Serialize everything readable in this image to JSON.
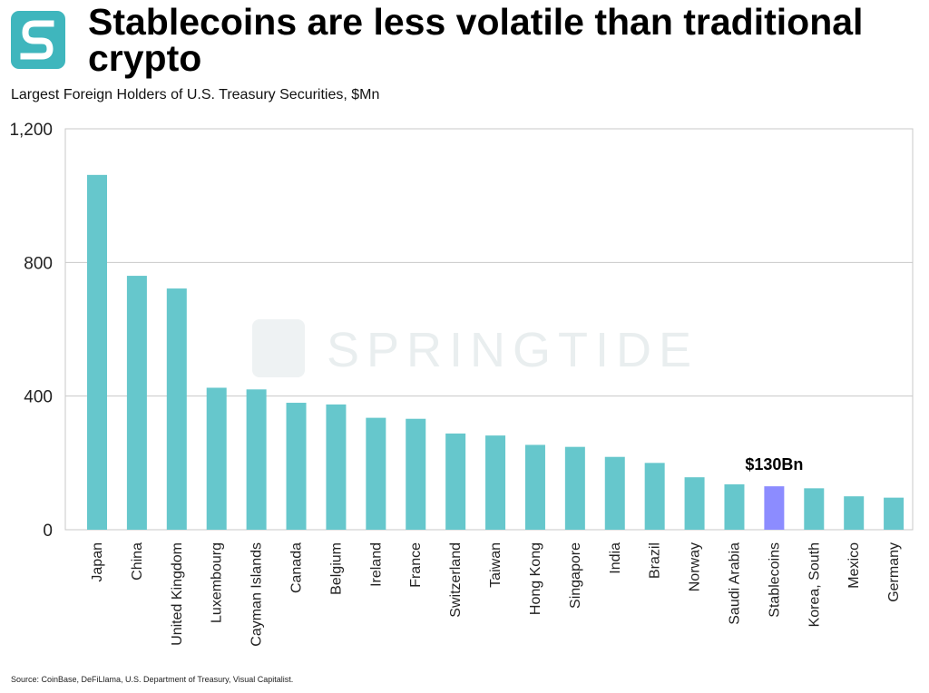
{
  "header": {
    "title": "Stablecoins are less volatile than traditional crypto",
    "subtitle": "Largest Foreign Holders of U.S. Treasury Securities, $Mn"
  },
  "watermark": {
    "text": "SPRINGTIDE"
  },
  "colors": {
    "bar": "#66c7cc",
    "highlight_bar": "#8c8cff",
    "logo": "#3fb6bd",
    "grid": "#c8c8c8",
    "watermark": "#e9eeef"
  },
  "footer": {
    "source": "Source: CoinBase, DeFiLlama, U.S. Department of Treasury, Visual Capitalist."
  },
  "chart_data": {
    "type": "bar",
    "title": "Largest Foreign Holders of U.S. Treasury Securities, $Mn",
    "categories": [
      "Japan",
      "China",
      "United Kingdom",
      "Luxembourg",
      "Cayman Islands",
      "Canada",
      "Belgium",
      "Ireland",
      "France",
      "Switzerland",
      "Taiwan",
      "Hong Kong",
      "Singapore",
      "India",
      "Brazil",
      "Norway",
      "Saudi Arabia",
      "Stablecoins",
      "Korea, South",
      "Mexico",
      "Germany"
    ],
    "values": [
      1062,
      760,
      722,
      425,
      420,
      380,
      375,
      335,
      332,
      288,
      282,
      254,
      248,
      218,
      200,
      157,
      136,
      130,
      124,
      100,
      96
    ],
    "highlight_index": 17,
    "annotation": "$130Bn",
    "ylim": [
      0,
      1200
    ],
    "yticks": [
      0,
      400,
      800,
      1200
    ],
    "ytick_labels": [
      "0",
      "400",
      "800",
      "1,200"
    ],
    "grid": true,
    "legend": false,
    "xlabel": "",
    "ylabel": ""
  }
}
